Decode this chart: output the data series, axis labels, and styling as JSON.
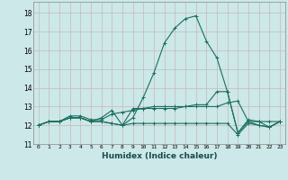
{
  "xlabel": "Humidex (Indice chaleur)",
  "bg_color": "#cce8e8",
  "grid_color": "#c8b8b8",
  "line_color": "#1a6e5e",
  "xlim": [
    -0.5,
    23.5
  ],
  "ylim": [
    11,
    18.6
  ],
  "yticks": [
    11,
    12,
    13,
    14,
    15,
    16,
    17,
    18
  ],
  "xticks": [
    0,
    1,
    2,
    3,
    4,
    5,
    6,
    7,
    8,
    9,
    10,
    11,
    12,
    13,
    14,
    15,
    16,
    17,
    18,
    19,
    20,
    21,
    22,
    23
  ],
  "lines": [
    [
      12.0,
      12.2,
      12.2,
      12.4,
      12.4,
      12.2,
      12.2,
      12.1,
      12.0,
      12.4,
      13.5,
      14.8,
      16.4,
      17.2,
      17.7,
      17.85,
      16.5,
      15.6,
      13.8,
      11.6,
      12.2,
      12.0,
      11.9,
      12.2
    ],
    [
      12.0,
      12.2,
      12.2,
      12.4,
      12.4,
      12.2,
      12.4,
      12.8,
      12.0,
      12.9,
      12.9,
      12.9,
      12.9,
      12.9,
      13.0,
      13.0,
      13.0,
      13.0,
      13.2,
      13.3,
      12.2,
      12.2,
      12.2,
      12.2
    ],
    [
      12.0,
      12.2,
      12.2,
      12.4,
      12.4,
      12.2,
      12.2,
      12.1,
      12.0,
      12.1,
      12.1,
      12.1,
      12.1,
      12.1,
      12.1,
      12.1,
      12.1,
      12.1,
      12.1,
      11.5,
      12.1,
      12.0,
      11.9,
      12.2
    ],
    [
      12.0,
      12.2,
      12.2,
      12.5,
      12.5,
      12.3,
      12.3,
      12.6,
      12.7,
      12.8,
      12.9,
      13.0,
      13.0,
      13.0,
      13.0,
      13.1,
      13.1,
      13.8,
      13.8,
      11.6,
      12.3,
      12.2,
      11.9,
      12.2
    ]
  ]
}
